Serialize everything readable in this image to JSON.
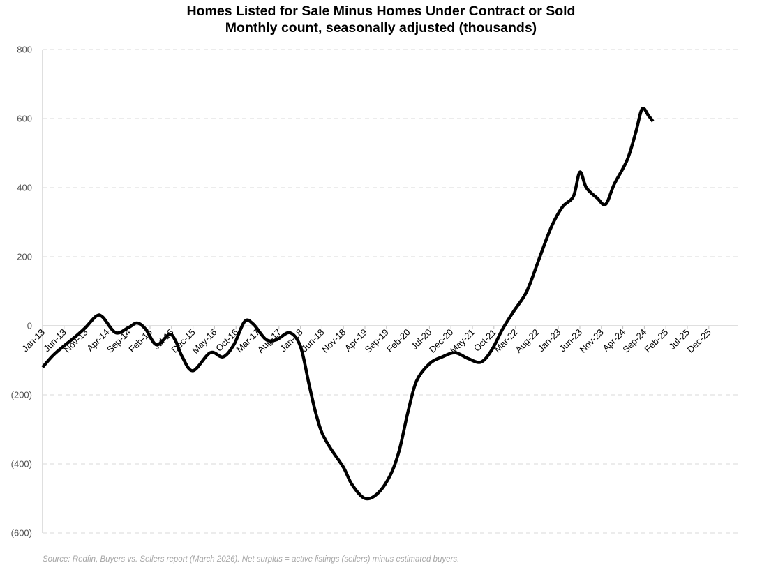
{
  "chart_data": {
    "type": "line",
    "title": "Homes Listed for Sale Minus Homes Under Contract or Sold",
    "subtitle": "Monthly count, seasonally adjusted (thousands)",
    "xlabel": "",
    "ylabel": "",
    "ylim": [
      -600,
      800
    ],
    "yticks": [
      800,
      600,
      400,
      200,
      0,
      -200,
      -400,
      -600
    ],
    "ytick_labels": [
      "800",
      "600",
      "400",
      "200",
      "0",
      "(200)",
      "(400)",
      "(600)"
    ],
    "grid": true,
    "x_categories": [
      "Jan-13",
      "Jun-13",
      "Nov-13",
      "Apr-14",
      "Sep-14",
      "Feb-15",
      "Jul-15",
      "Dec-15",
      "May-16",
      "Oct-16",
      "Mar-17",
      "Aug-17",
      "Jan-18",
      "Jun-18",
      "Nov-18",
      "Apr-19",
      "Sep-19",
      "Feb-20",
      "Jul-20",
      "Dec-20",
      "May-21",
      "Oct-21",
      "Mar-22",
      "Aug-22",
      "Jan-23",
      "Jun-23",
      "Nov-23",
      "Apr-24",
      "Sep-24",
      "Feb-25",
      "Jul-25",
      "Dec-25"
    ],
    "series": [
      {
        "name": "Net surplus",
        "color": "#000000",
        "points": [
          [
            0,
            -120
          ],
          [
            2.5,
            -85
          ],
          [
            5,
            -58
          ],
          [
            7.5,
            -33
          ],
          [
            10,
            -5
          ],
          [
            12.5,
            28
          ],
          [
            14,
            25
          ],
          [
            17,
            -20
          ],
          [
            20,
            -5
          ],
          [
            22,
            8
          ],
          [
            24,
            -10
          ],
          [
            26.5,
            -55
          ],
          [
            29.5,
            -25
          ],
          [
            31,
            -45
          ],
          [
            32.5,
            -90
          ],
          [
            35,
            -130
          ],
          [
            39,
            -78
          ],
          [
            42,
            -90
          ],
          [
            44.5,
            -55
          ],
          [
            47,
            12
          ],
          [
            49,
            5
          ],
          [
            52,
            -40
          ],
          [
            54.5,
            -40
          ],
          [
            57.5,
            -20
          ],
          [
            60,
            -60
          ],
          [
            62,
            -170
          ],
          [
            63.5,
            -250
          ],
          [
            65,
            -310
          ],
          [
            67,
            -355
          ],
          [
            70,
            -410
          ],
          [
            72,
            -460
          ],
          [
            75,
            -500
          ],
          [
            78,
            -485
          ],
          [
            81,
            -430
          ],
          [
            83,
            -360
          ],
          [
            85,
            -250
          ],
          [
            87,
            -160
          ],
          [
            90,
            -110
          ],
          [
            93,
            -90
          ],
          [
            96,
            -78
          ],
          [
            99,
            -95
          ],
          [
            102,
            -105
          ],
          [
            104.5,
            -70
          ],
          [
            107,
            -10
          ],
          [
            109.5,
            40
          ],
          [
            112,
            85
          ],
          [
            113.5,
            125
          ],
          [
            116,
            210
          ],
          [
            118.5,
            290
          ],
          [
            121,
            345
          ],
          [
            123.5,
            375
          ],
          [
            125,
            445
          ],
          [
            126.5,
            400
          ],
          [
            129,
            370
          ],
          [
            131,
            352
          ],
          [
            133,
            410
          ],
          [
            136,
            480
          ],
          [
            138,
            560
          ],
          [
            139.5,
            628
          ],
          [
            141,
            608
          ],
          [
            142,
            592
          ]
        ]
      }
    ],
    "source": "Source: Redfin, Buyers vs. Sellers report (March 2026). Net surplus = active listings (sellers) minus estimated buyers."
  }
}
